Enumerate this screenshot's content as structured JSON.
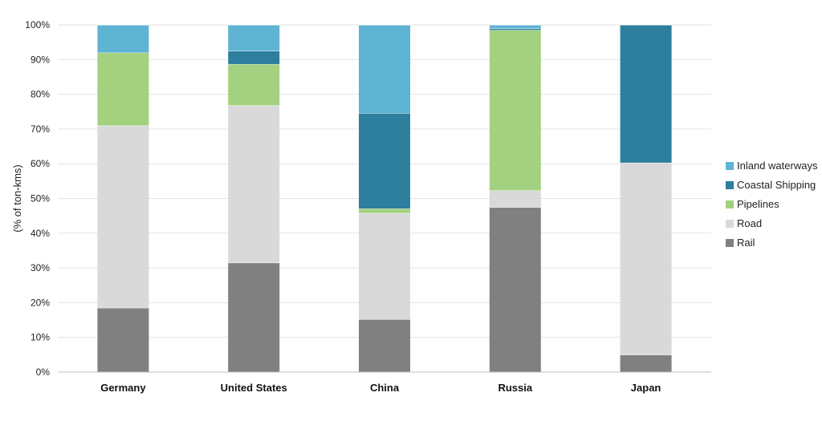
{
  "chart_data": {
    "type": "bar",
    "stacked": true,
    "ylabel": "(% of ton-kms)",
    "ylim": [
      0,
      100
    ],
    "yticks": [
      "0%",
      "10%",
      "20%",
      "30%",
      "40%",
      "50%",
      "60%",
      "70%",
      "80%",
      "90%",
      "100%"
    ],
    "grid": true,
    "legend_position": "right",
    "categories": [
      "Germany",
      "United States",
      "China",
      "Russia",
      "Japan"
    ],
    "series": [
      {
        "name": "Rail",
        "color": "#808080",
        "values": [
          18.5,
          31.5,
          15.2,
          47.5,
          5.0
        ]
      },
      {
        "name": "Road",
        "color": "#d9d9d9",
        "values": [
          52.5,
          45.3,
          30.6,
          4.8,
          55.3
        ]
      },
      {
        "name": "Pipelines",
        "color": "#a3d17f",
        "values": [
          21.0,
          11.9,
          1.3,
          46.2,
          0
        ]
      },
      {
        "name": "Coastal Shipping",
        "color": "#2e7f9e",
        "values": [
          0,
          3.8,
          27.5,
          0.5,
          39.7
        ]
      },
      {
        "name": "Inland waterways",
        "color": "#5fb3d3",
        "values": [
          8.0,
          7.5,
          25.4,
          1.0,
          0
        ]
      }
    ],
    "legend_order": [
      "Inland waterways",
      "Coastal Shipping",
      "Pipelines",
      "Road",
      "Rail"
    ]
  }
}
